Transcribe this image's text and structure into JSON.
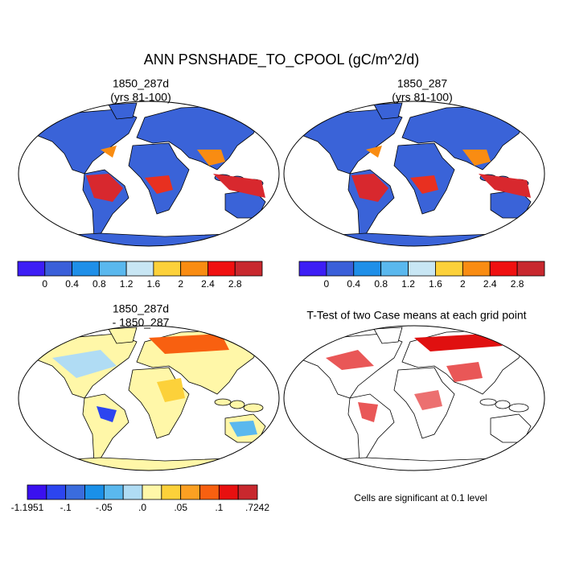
{
  "title": "ANN PSNSHADE_TO_CPOOL (gC/m^2/d)",
  "panels": [
    {
      "title": "1850_287d",
      "subtitle": "(yrs 81-100)"
    },
    {
      "title": "1850_287",
      "subtitle": "(yrs 81-100)"
    },
    {
      "title": "1850_287d",
      "subtitle": "- 1850_287"
    },
    {
      "title": "T-Test of two Case means at each grid point"
    }
  ],
  "colorbars": [
    {
      "colors": [
        "#3d1ef5",
        "#3a5fd9",
        "#1f8fe8",
        "#5ab8ee",
        "#c8e6f4",
        "#fcd13a",
        "#f98c12",
        "#f01010",
        "#c8282e"
      ],
      "labels": [
        "0",
        "0.4",
        "0.8",
        "1.2",
        "1.6",
        "2",
        "2.4",
        "2.8"
      ]
    },
    {
      "colors": [
        "#3d1ef5",
        "#3a5fd9",
        "#1f8fe8",
        "#5ab8ee",
        "#c8e6f4",
        "#fcd13a",
        "#f98c12",
        "#f01010",
        "#c8282e"
      ],
      "labels": [
        "0",
        "0.4",
        "0.8",
        "1.2",
        "1.6",
        "2",
        "2.4",
        "2.8"
      ]
    },
    {
      "colors": [
        "#3a10f0",
        "#2c45f0",
        "#3a6cdd",
        "#1a90e8",
        "#5ab8ee",
        "#b0dcf4",
        "#fff7a8",
        "#fcd13a",
        "#fca022",
        "#f86010",
        "#e81010",
        "#c8282e"
      ],
      "labels": [
        "-1.1951",
        "-.1",
        "-.05",
        ".0",
        ".05",
        ".1",
        ".7242"
      ]
    }
  ],
  "note": "Cells are significant at 0.1 level"
}
